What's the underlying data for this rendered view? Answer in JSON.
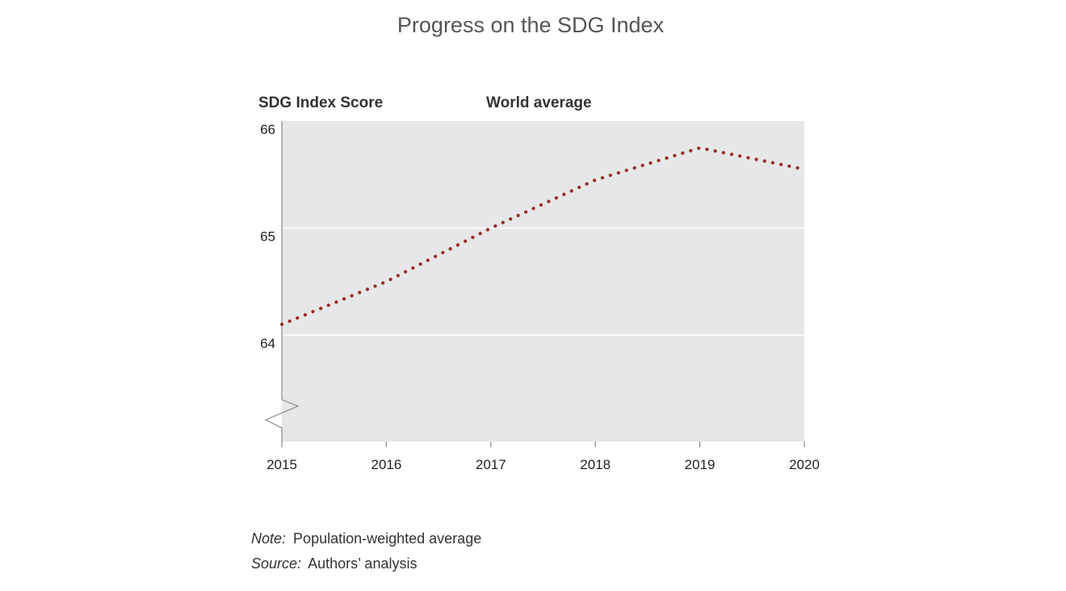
{
  "chart_data": {
    "type": "line",
    "title": "Progress on the SDG Index",
    "ylabel": "SDG Index Score",
    "xlabel": "",
    "series_label": "World average",
    "x": [
      2015,
      2016,
      2017,
      2018,
      2019,
      2020
    ],
    "x_ticks": [
      "2015",
      "2016",
      "2017",
      "2018",
      "2019",
      "2020"
    ],
    "y_ticks": [
      "64",
      "65",
      "66"
    ],
    "ylim": [
      63,
      66
    ],
    "axis_break": true,
    "grid": true,
    "series": [
      {
        "name": "World average",
        "values": [
          64.1,
          64.5,
          65.0,
          65.45,
          65.75,
          65.55
        ],
        "color": "#9b2a2a",
        "style": "dotted"
      }
    ],
    "plot_background": "#e6e7e8"
  },
  "notes": {
    "note_label": "Note:",
    "note_text": "Population-weighted average",
    "source_label": "Source:",
    "source_text": "Authors’ analysis"
  }
}
